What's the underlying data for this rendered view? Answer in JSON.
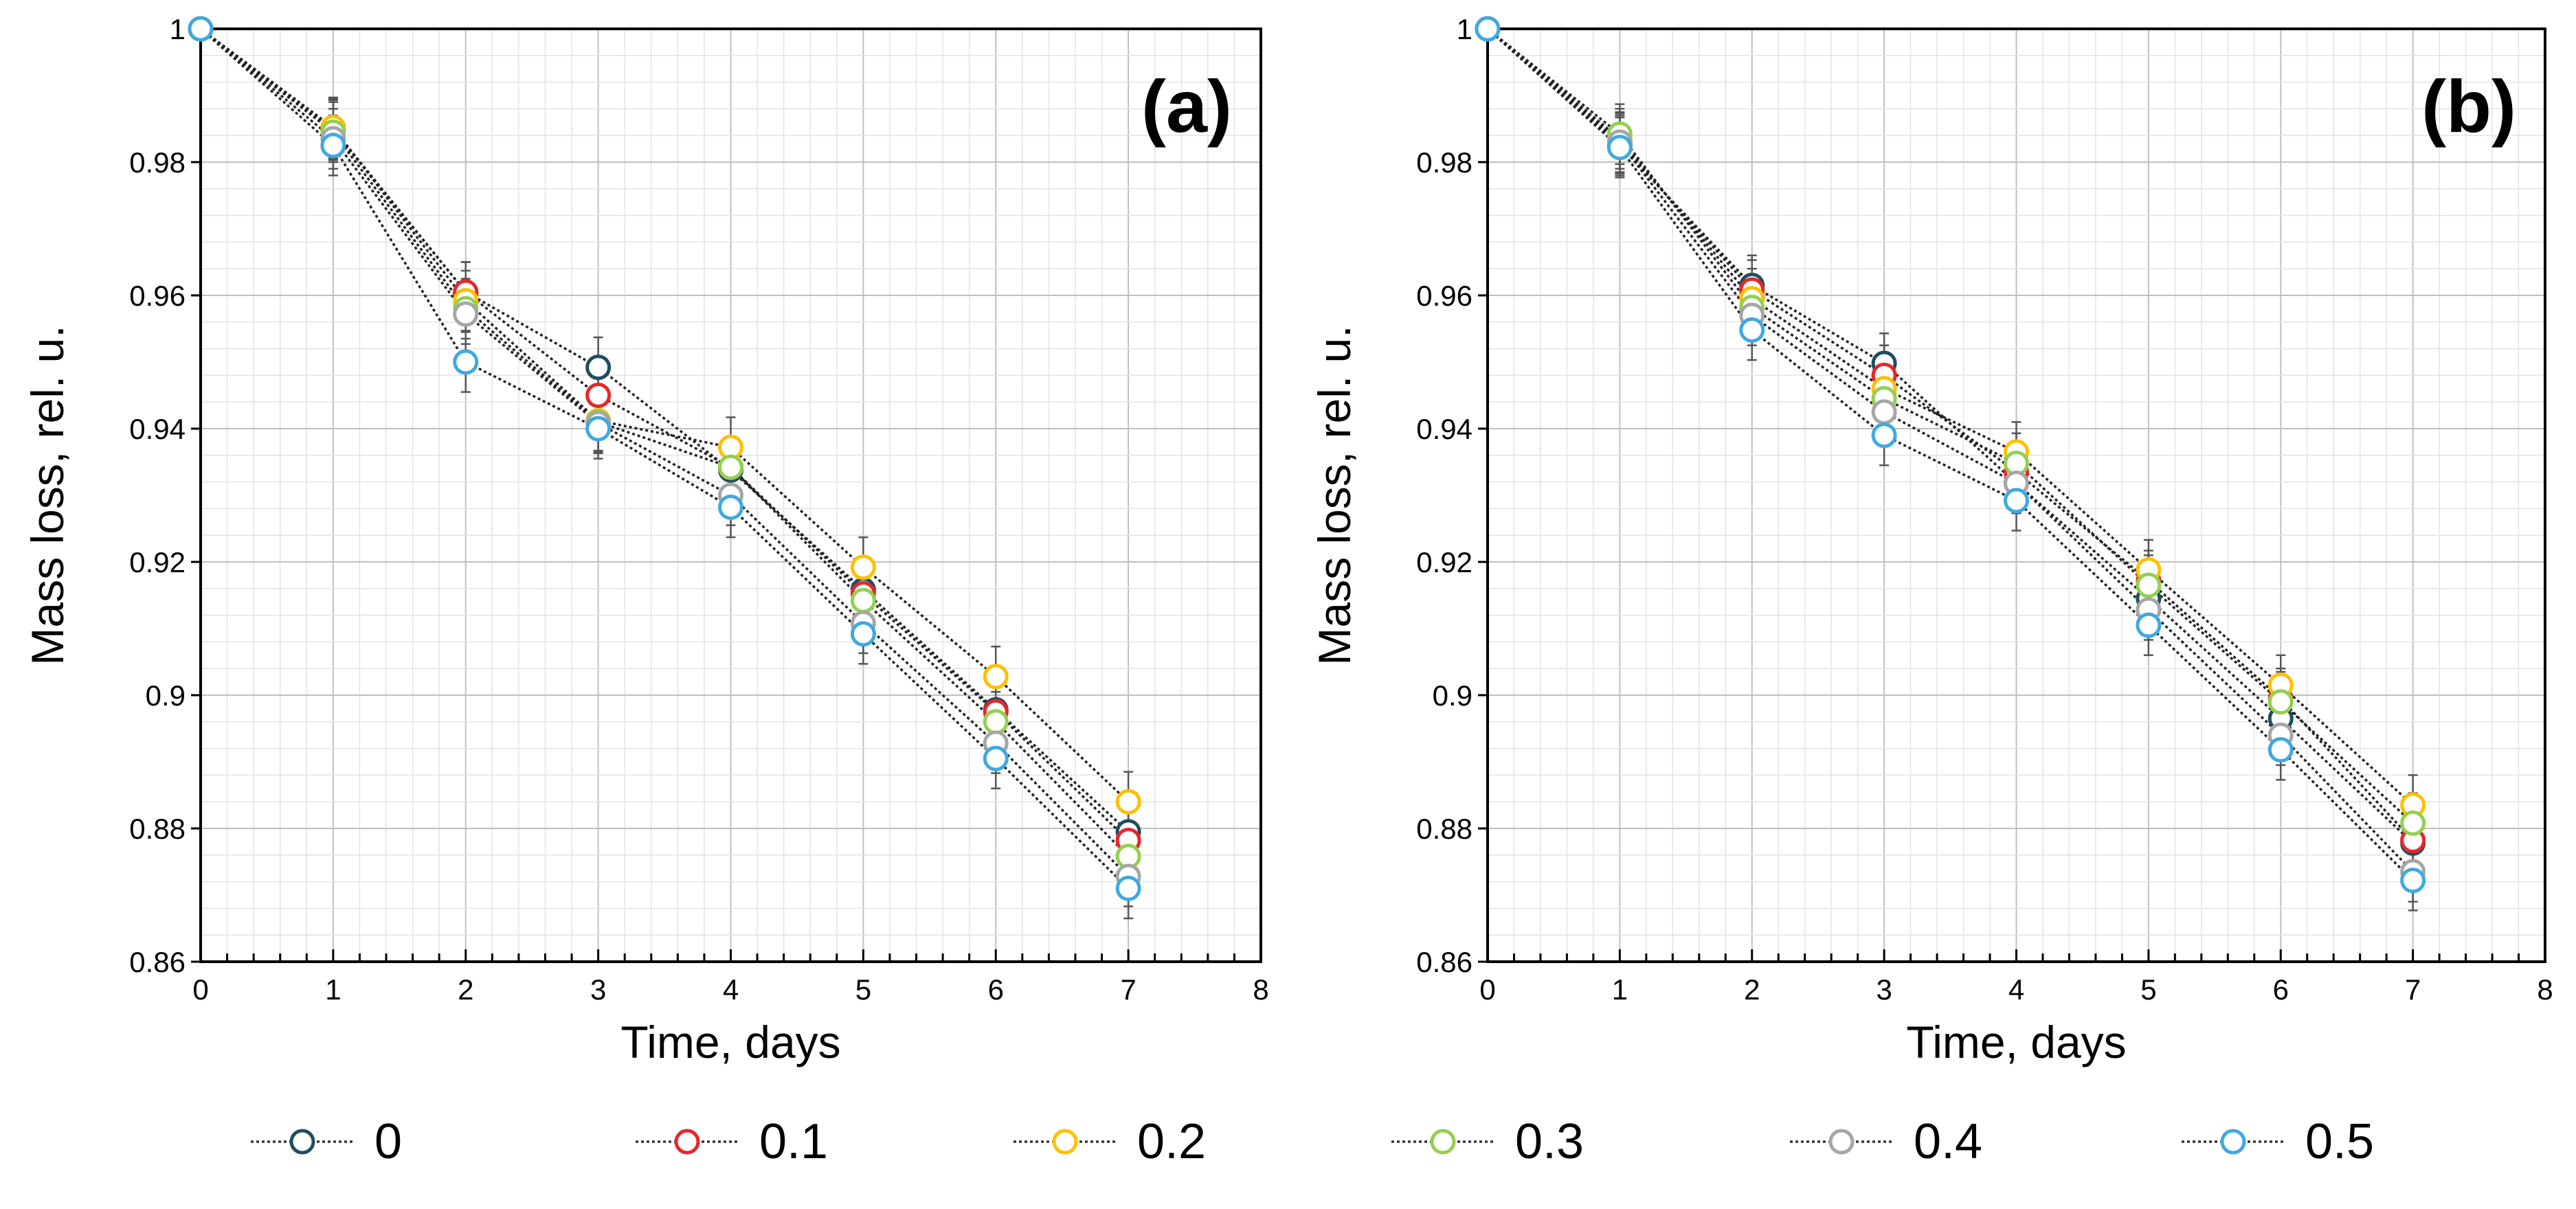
{
  "chart_data": [
    {
      "type": "line",
      "panel_label": "(a)",
      "xlabel": "Time, days",
      "ylabel": "Mass loss, rel. u.",
      "xlim": [
        0,
        8
      ],
      "ylim": [
        0.86,
        1.0
      ],
      "x_ticks": [
        "0",
        "1",
        "2",
        "3",
        "4",
        "5",
        "6",
        "7",
        "8"
      ],
      "y_ticks": [
        "0.86",
        "0.88",
        "0.9",
        "0.92",
        "0.94",
        "0.96",
        "0.98",
        "1"
      ],
      "x": [
        0,
        1,
        2,
        3,
        4,
        5,
        6,
        7
      ],
      "error": 0.0045,
      "grid": true,
      "series": [
        {
          "name": "0",
          "values": [
            1.0,
            0.9848,
            0.9605,
            0.9492,
            0.9338,
            0.9158,
            0.8978,
            0.8795
          ]
        },
        {
          "name": "0.1",
          "values": [
            1.0,
            0.985,
            0.9605,
            0.945,
            0.9342,
            0.9152,
            0.8975,
            0.8782
          ]
        },
        {
          "name": "0.2",
          "values": [
            1.0,
            0.9852,
            0.9592,
            0.9412,
            0.9372,
            0.9192,
            0.9028,
            0.884
          ]
        },
        {
          "name": "0.3",
          "values": [
            1.0,
            0.9845,
            0.958,
            0.941,
            0.9342,
            0.9142,
            0.896,
            0.8758
          ]
        },
        {
          "name": "0.4",
          "values": [
            1.0,
            0.9835,
            0.9572,
            0.9408,
            0.93,
            0.9108,
            0.8928,
            0.8728
          ]
        },
        {
          "name": "0.5",
          "values": [
            1.0,
            0.9825,
            0.95,
            0.94,
            0.9282,
            0.9092,
            0.8905,
            0.871
          ]
        }
      ]
    },
    {
      "type": "line",
      "panel_label": "(b)",
      "xlabel": "Time, days",
      "ylabel": "Mass loss, rel. u.",
      "xlim": [
        0,
        8
      ],
      "ylim": [
        0.86,
        1.0
      ],
      "x_ticks": [
        "0",
        "1",
        "2",
        "3",
        "4",
        "5",
        "6",
        "7",
        "8"
      ],
      "y_ticks": [
        "0.86",
        "0.88",
        "0.9",
        "0.92",
        "0.94",
        "0.96",
        "0.98",
        "1"
      ],
      "x": [
        0,
        1,
        2,
        3,
        4,
        5,
        6,
        7
      ],
      "error": 0.0045,
      "grid": true,
      "series": [
        {
          "name": "0",
          "values": [
            1.0,
            0.9825,
            0.9615,
            0.9498,
            0.9318,
            0.9145,
            0.8965,
            0.8778
          ]
        },
        {
          "name": "0.1",
          "values": [
            1.0,
            0.9828,
            0.9608,
            0.948,
            0.9335,
            0.9172,
            0.8995,
            0.8782
          ]
        },
        {
          "name": "0.2",
          "values": [
            1.0,
            0.9835,
            0.9595,
            0.946,
            0.9365,
            0.9188,
            0.9015,
            0.8835
          ]
        },
        {
          "name": "0.3",
          "values": [
            1.0,
            0.9842,
            0.9582,
            0.9445,
            0.9348,
            0.9165,
            0.899,
            0.8808
          ]
        },
        {
          "name": "0.4",
          "values": [
            1.0,
            0.983,
            0.957,
            0.9425,
            0.9318,
            0.9128,
            0.894,
            0.8735
          ]
        },
        {
          "name": "0.5",
          "values": [
            1.0,
            0.9822,
            0.9548,
            0.939,
            0.9292,
            0.9105,
            0.8918,
            0.8722
          ]
        }
      ]
    }
  ],
  "legend": {
    "items": [
      {
        "label": "0",
        "color": "#1F4E60"
      },
      {
        "label": "0.1",
        "color": "#E8262A"
      },
      {
        "label": "0.2",
        "color": "#FFC000"
      },
      {
        "label": "0.3",
        "color": "#92D050"
      },
      {
        "label": "0.4",
        "color": "#A6A6A6"
      },
      {
        "label": "0.5",
        "color": "#3FA9E0"
      }
    ]
  }
}
